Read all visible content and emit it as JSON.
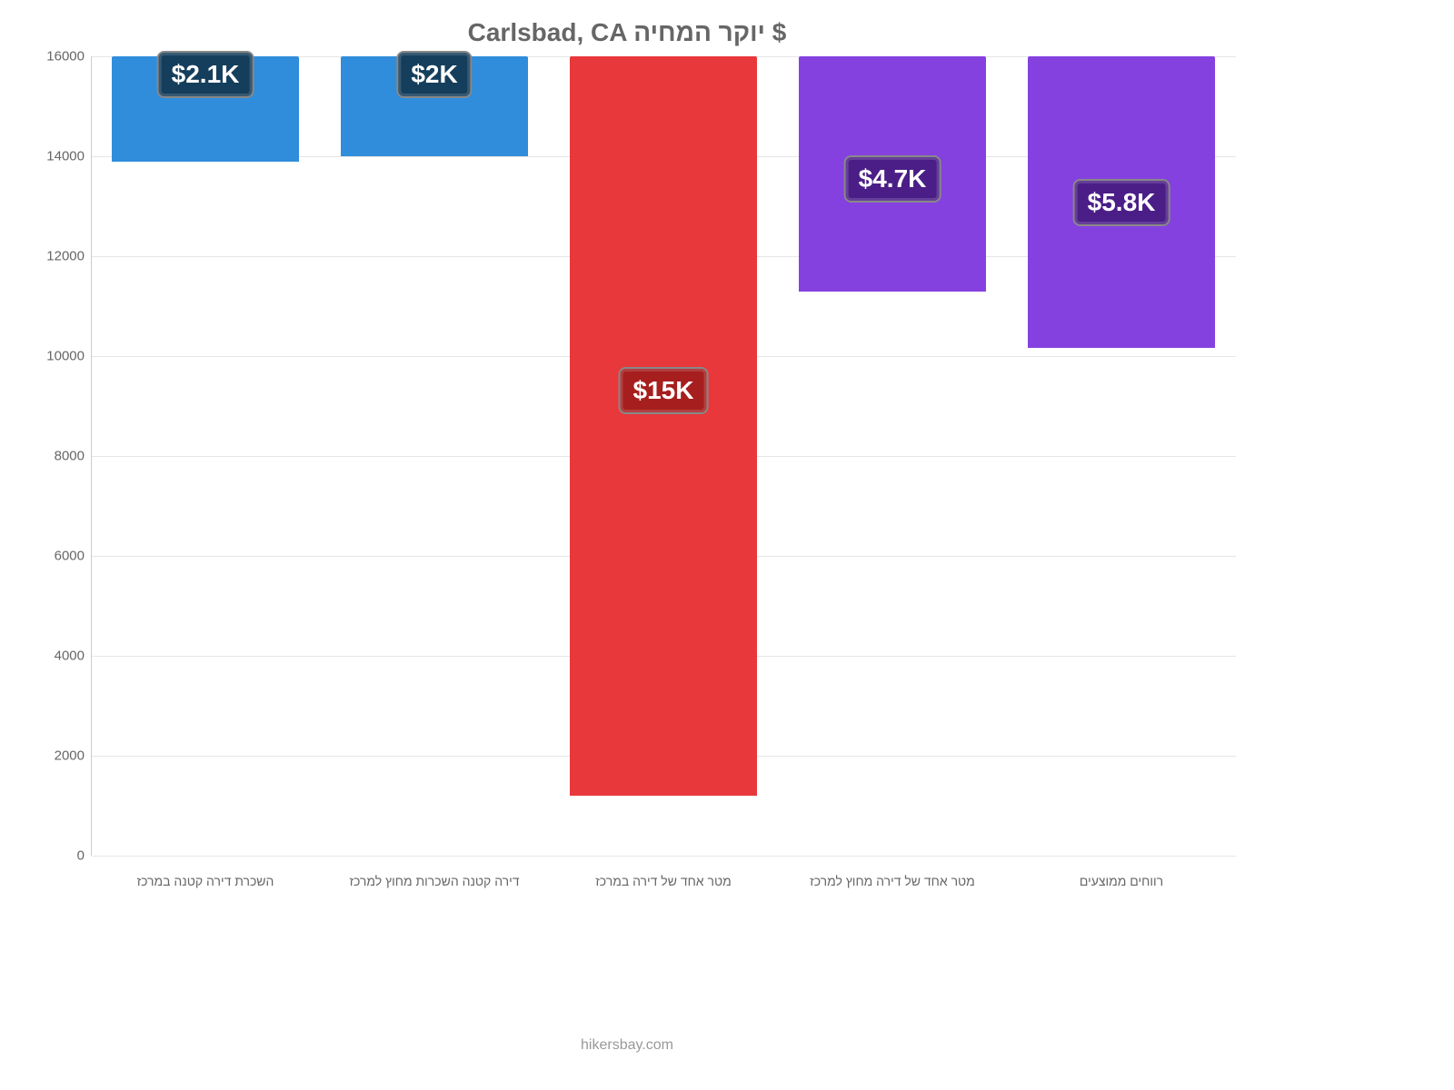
{
  "chart": {
    "type": "bar",
    "title": "Carlsbad, CA יוקר המחיה $",
    "title_color": "#666666",
    "title_fontsize": 28,
    "background_color": "#ffffff",
    "grid_color": "#e6e6e6",
    "axis_color": "#cccccc",
    "label_color": "#666666",
    "ylim_min": 0,
    "ylim_max": 16000,
    "ytick_step": 2000,
    "yticks": [
      0,
      2000,
      4000,
      6000,
      8000,
      10000,
      12000,
      14000,
      16000
    ],
    "bar_width": 0.82,
    "categories": [
      "השכרת דירה קטנה במרכז",
      "דירה קטנה השכרות מחוץ למרכז",
      "מטר אחד של דירה במרכז",
      "מטר אחד של דירה מחוץ למרכז",
      "רווחים ממוצעים"
    ],
    "values": [
      2100,
      2000,
      14800,
      4700,
      5833
    ],
    "value_labels": [
      "$2.1K",
      "$2K",
      "$15K",
      "$4.7K",
      "$5.8K"
    ],
    "bar_colors": [
      "#2f8ddc",
      "#2f8ddc",
      "#e8383b",
      "#8541e0",
      "#8541e0"
    ],
    "label_bg_colors": [
      "#153e5c",
      "#153e5c",
      "#a61e1e",
      "#4b1e87",
      "#4b1e87"
    ],
    "label_fontsize": 28,
    "xlabel_fontsize": 14,
    "ytick_fontsize": 15
  },
  "footer": {
    "text": "hikersbay.com",
    "color": "#999999"
  }
}
